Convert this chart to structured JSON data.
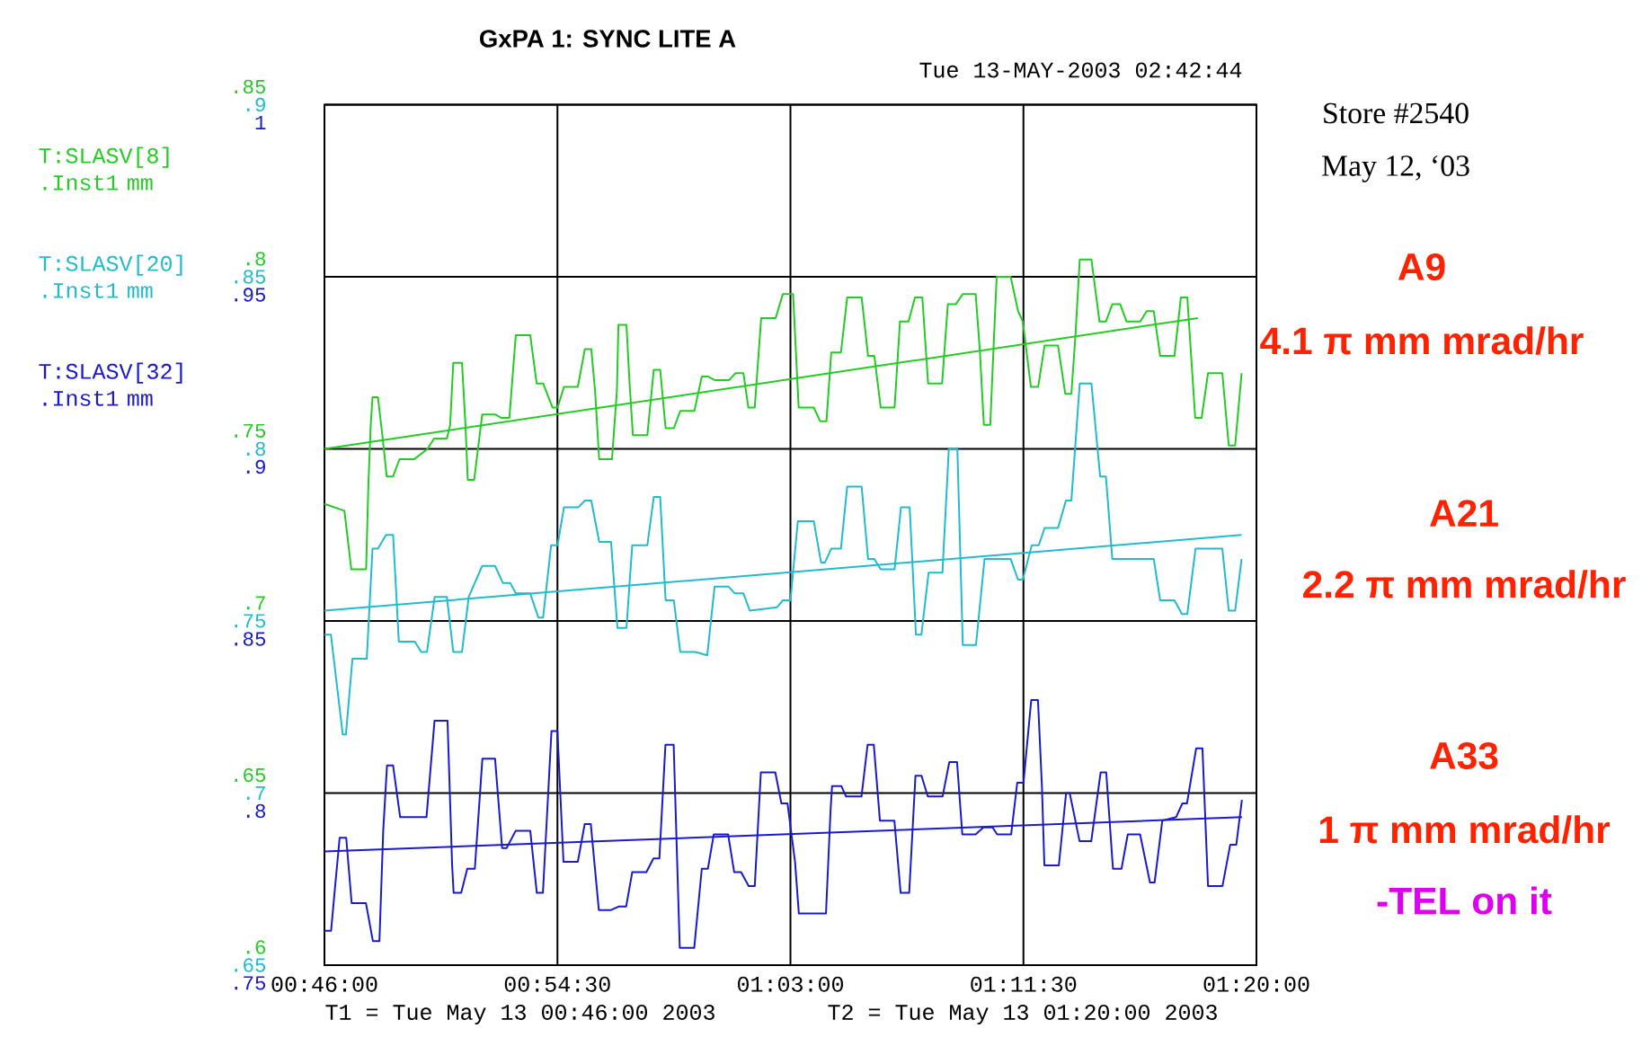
{
  "chart_data": {
    "type": "line",
    "title": "GxPA 1: SYNC LITE A",
    "subtitle": "Tue 13-MAY-2003 02:42:44",
    "xlim": [
      0.766667,
      1.333333
    ],
    "xticks": [
      {
        "value": 0.766667,
        "label": "00:46:00"
      },
      {
        "value": 0.908333,
        "label": "00:54:30"
      },
      {
        "value": 1.05,
        "label": "01:03:00"
      },
      {
        "value": 1.191667,
        "label": "01:11:30"
      },
      {
        "value": 1.333333,
        "label": "01:20:00"
      }
    ],
    "ylim": [
      0.6,
      0.85
    ],
    "yticks": [
      {
        "value": 0.6,
        "label": ".6"
      },
      {
        "value": 0.65,
        "label": ".65"
      },
      {
        "value": 0.7,
        "label": ".7"
      },
      {
        "value": 0.75,
        "label": ".75"
      },
      {
        "value": 0.8,
        "label": ".8"
      },
      {
        "value": 0.85,
        "label": ".85"
      }
    ],
    "y2lim": [
      0.65,
      0.9
    ],
    "y2ticks": [
      {
        "value": 0.65,
        "label": ".65"
      },
      {
        "value": 0.7,
        "label": ".7"
      },
      {
        "value": 0.75,
        "label": ".75"
      },
      {
        "value": 0.8,
        "label": ".8"
      },
      {
        "value": 0.85,
        "label": ".85"
      },
      {
        "value": 0.9,
        "label": ".9"
      }
    ],
    "y3lim": [
      0.75,
      1
    ],
    "y3ticks": [
      {
        "value": 0.75,
        "label": ".75"
      },
      {
        "value": 0.8,
        "label": ".8"
      },
      {
        "value": 0.85,
        "label": ".85"
      },
      {
        "value": 0.9,
        "label": ".9"
      },
      {
        "value": 0.95,
        "label": ".95"
      },
      1
    ],
    "grid": true,
    "series": [
      {
        "name": "T:SLASV[8] .Inst1 mm",
        "color": "#22cc22",
        "x": [
          0.7667,
          0.7788,
          0.783,
          0.792,
          0.7934,
          0.7948,
          0.7959,
          0.7992,
          0.8021,
          0.8045,
          0.8084,
          0.8123,
          0.8212,
          0.8294,
          0.8333,
          0.8411,
          0.8431,
          0.845,
          0.8503,
          0.8524,
          0.8538,
          0.8577,
          0.8626,
          0.8704,
          0.8743,
          0.8791,
          0.883,
          0.8918,
          0.8957,
          0.8996,
          0.9054,
          0.9084,
          0.9123,
          0.9207,
          0.925,
          0.9289,
          0.9312,
          0.9337,
          0.9415,
          0.9445,
          0.9454,
          0.9503,
          0.9522,
          0.9542,
          0.963,
          0.9669,
          0.9708,
          0.9741,
          0.9791,
          0.983,
          0.9916,
          0.9961,
          1.0,
          1.0039,
          1.0127,
          1.0166,
          1.0214,
          1.0244,
          1.0283,
          1.0322,
          1.041,
          1.0454,
          1.0491,
          1.0516,
          1.055,
          1.0642,
          1.0681,
          1.0719,
          1.0748,
          1.0807,
          1.0845,
          1.0933,
          1.0972,
          1.101,
          1.1049,
          1.1133,
          1.1166,
          1.1218,
          1.1257,
          1.1302,
          1.1337,
          1.1422,
          1.1457,
          1.1505,
          1.1548,
          1.1626,
          1.1651,
          1.1676,
          1.1715,
          1.1738,
          1.1754,
          1.1839,
          1.1884,
          1.1913,
          1.1962,
          1.2006,
          1.2045,
          1.2127,
          1.2171,
          1.2208,
          1.2233,
          1.2259,
          1.233,
          1.2379,
          1.2418,
          1.2457,
          1.2505,
          1.2544,
          1.2627,
          1.2666,
          1.2709,
          1.2748,
          1.2835,
          1.2874,
          1.2913,
          1.2961,
          1.3,
          1.3039,
          1.3126,
          1.3165,
          1.3204,
          1.3243
        ],
        "values": [
          0.734,
          0.732,
          0.715,
          0.715,
          0.74,
          0.757,
          0.765,
          0.765,
          0.753,
          0.742,
          0.742,
          0.747,
          0.747,
          0.75,
          0.753,
          0.753,
          0.757,
          0.775,
          0.775,
          0.757,
          0.741,
          0.741,
          0.76,
          0.76,
          0.759,
          0.759,
          0.783,
          0.783,
          0.769,
          0.769,
          0.762,
          0.762,
          0.768,
          0.768,
          0.779,
          0.779,
          0.767,
          0.747,
          0.747,
          0.767,
          0.786,
          0.786,
          0.769,
          0.754,
          0.754,
          0.773,
          0.773,
          0.756,
          0.756,
          0.761,
          0.761,
          0.771,
          0.771,
          0.77,
          0.77,
          0.772,
          0.772,
          0.762,
          0.762,
          0.788,
          0.788,
          0.795,
          0.795,
          0.795,
          0.762,
          0.762,
          0.758,
          0.758,
          0.778,
          0.778,
          0.794,
          0.794,
          0.777,
          0.777,
          0.762,
          0.762,
          0.787,
          0.787,
          0.794,
          0.794,
          0.769,
          0.769,
          0.792,
          0.792,
          0.795,
          0.795,
          0.779,
          0.757,
          0.757,
          0.783,
          0.8,
          0.8,
          0.79,
          0.787,
          0.768,
          0.768,
          0.78,
          0.78,
          0.766,
          0.766,
          0.783,
          0.805,
          0.805,
          0.787,
          0.787,
          0.792,
          0.792,
          0.787,
          0.787,
          0.79,
          0.79,
          0.777,
          0.777,
          0.794,
          0.794,
          0.759,
          0.759,
          0.772,
          0.772,
          0.751,
          0.751,
          0.772
        ]
      },
      {
        "name": "T:SLASV[20] .Inst1 mm",
        "color": "#22bbcc",
        "axis": "y2",
        "x": [
          0.7667,
          0.7706,
          0.7778,
          0.7797,
          0.7837,
          0.7924,
          0.7959,
          0.7992,
          0.8041,
          0.8084,
          0.8119,
          0.8216,
          0.8255,
          0.829,
          0.8337,
          0.8411,
          0.845,
          0.8503,
          0.8544,
          0.8626,
          0.8704,
          0.8752,
          0.8797,
          0.883,
          0.8918,
          0.8967,
          0.8996,
          0.9045,
          0.9084,
          0.9123,
          0.921,
          0.925,
          0.9289,
          0.9337,
          0.9409,
          0.9448,
          0.9503,
          0.9538,
          0.963,
          0.9669,
          0.9708,
          0.9741,
          0.9791,
          0.983,
          0.9922,
          0.9994,
          1.0039,
          1.0123,
          1.0162,
          1.0214,
          1.0253,
          1.0419,
          1.0454,
          1.05,
          1.0545,
          1.0642,
          1.0686,
          1.071,
          1.0748,
          1.0807,
          1.0845,
          1.0933,
          1.0972,
          1.101,
          1.1049,
          1.1133,
          1.1172,
          1.1225,
          1.1263,
          1.1296,
          1.134,
          1.1424,
          1.1463,
          1.1515,
          1.1548,
          1.1628,
          1.168,
          1.1839,
          1.1884,
          1.1913,
          1.1967,
          1.201,
          1.2045,
          1.2127,
          1.2175,
          1.2208,
          1.2259,
          1.233,
          1.2383,
          1.2418,
          1.2457,
          1.2709,
          1.2748,
          1.2835,
          1.288,
          1.2913,
          1.2963,
          1.3126,
          1.3165,
          1.3204,
          1.3243
        ],
        "values": [
          0.746,
          0.746,
          0.717,
          0.717,
          0.739,
          0.739,
          0.771,
          0.771,
          0.775,
          0.775,
          0.744,
          0.744,
          0.741,
          0.741,
          0.757,
          0.757,
          0.741,
          0.741,
          0.757,
          0.766,
          0.766,
          0.761,
          0.761,
          0.758,
          0.758,
          0.751,
          0.751,
          0.772,
          0.772,
          0.783,
          0.783,
          0.785,
          0.785,
          0.773,
          0.773,
          0.748,
          0.748,
          0.772,
          0.772,
          0.786,
          0.786,
          0.756,
          0.756,
          0.741,
          0.741,
          0.74,
          0.76,
          0.76,
          0.758,
          0.758,
          0.753,
          0.754,
          0.756,
          0.756,
          0.779,
          0.779,
          0.767,
          0.767,
          0.771,
          0.771,
          0.789,
          0.789,
          0.768,
          0.768,
          0.765,
          0.765,
          0.783,
          0.783,
          0.746,
          0.746,
          0.764,
          0.764,
          0.8,
          0.8,
          0.743,
          0.743,
          0.768,
          0.768,
          0.762,
          0.762,
          0.772,
          0.772,
          0.777,
          0.777,
          0.785,
          0.785,
          0.819,
          0.819,
          0.792,
          0.792,
          0.768,
          0.768,
          0.756,
          0.756,
          0.752,
          0.752,
          0.771,
          0.771,
          0.753,
          0.753,
          0.768
        ]
      },
      {
        "name": "T:SLASV[32] .Inst1 mm",
        "color": "#1a1acc",
        "axis": "y3",
        "x": [
          0.7667,
          0.7707,
          0.7726,
          0.7759,
          0.7799,
          0.7832,
          0.7919,
          0.7961,
          0.8001,
          0.8024,
          0.8047,
          0.8084,
          0.8127,
          0.8287,
          0.8336,
          0.8415,
          0.8443,
          0.8452,
          0.8498,
          0.8535,
          0.8581,
          0.8627,
          0.8704,
          0.8747,
          0.8774,
          0.8829,
          0.8918,
          0.8958,
          0.8995,
          0.9047,
          0.9083,
          0.912,
          0.9207,
          0.9249,
          0.9286,
          0.9335,
          0.9409,
          0.9455,
          0.9501,
          0.9538,
          0.9624,
          0.9667,
          0.9703,
          0.974,
          0.979,
          0.9827,
          0.9915,
          0.9961,
          0.9998,
          1.0034,
          1.0121,
          1.0158,
          1.02,
          1.0246,
          1.0283,
          1.032,
          1.0408,
          1.0445,
          1.0482,
          1.0528,
          1.0551,
          1.0716,
          1.0744,
          1.0753,
          1.081,
          1.0838,
          1.0932,
          1.0969,
          1.1007,
          1.1044,
          1.1132,
          1.117,
          1.1222,
          1.126,
          1.1297,
          1.1335,
          1.1425,
          1.1466,
          1.1513,
          1.1545,
          1.1626,
          1.1673,
          1.1729,
          1.1757,
          1.1842,
          1.1879,
          1.1917,
          1.1964,
          1.2005,
          1.2029,
          1.2044,
          1.2132,
          1.2176,
          1.2198,
          1.2258,
          1.2329,
          1.2386,
          1.242,
          1.2461,
          1.2513,
          1.2551,
          1.2626,
          1.2686,
          1.2714,
          1.2761,
          1.2845,
          1.2883,
          1.2911,
          1.2967,
          1.3005,
          1.3039,
          1.3127,
          1.3174,
          1.3211,
          1.3245
        ],
        "values": [
          0.76,
          0.76,
          0.77,
          0.787,
          0.787,
          0.768,
          0.768,
          0.757,
          0.757,
          0.789,
          0.808,
          0.808,
          0.793,
          0.793,
          0.821,
          0.821,
          0.779,
          0.771,
          0.771,
          0.778,
          0.778,
          0.81,
          0.81,
          0.784,
          0.784,
          0.789,
          0.789,
          0.771,
          0.771,
          0.818,
          0.818,
          0.78,
          0.78,
          0.791,
          0.791,
          0.766,
          0.766,
          0.767,
          0.767,
          0.777,
          0.777,
          0.781,
          0.781,
          0.814,
          0.814,
          0.755,
          0.755,
          0.778,
          0.778,
          0.788,
          0.788,
          0.777,
          0.777,
          0.773,
          0.773,
          0.806,
          0.806,
          0.797,
          0.797,
          0.78,
          0.765,
          0.765,
          0.795,
          0.802,
          0.802,
          0.799,
          0.799,
          0.814,
          0.814,
          0.792,
          0.792,
          0.771,
          0.771,
          0.805,
          0.805,
          0.799,
          0.799,
          0.809,
          0.809,
          0.788,
          0.788,
          0.79,
          0.79,
          0.788,
          0.788,
          0.803,
          0.803,
          0.827,
          0.827,
          0.802,
          0.779,
          0.779,
          0.8,
          0.8,
          0.786,
          0.786,
          0.806,
          0.806,
          0.778,
          0.778,
          0.788,
          0.788,
          0.774,
          0.774,
          0.792,
          0.793,
          0.797,
          0.797,
          0.813,
          0.813,
          0.773,
          0.773,
          0.785,
          0.785,
          0.798
        ]
      },
      {
        "type": "line",
        "color": "#22cc22",
        "x": [
          0.7667,
          1.2977
        ],
        "values": [
          0.75,
          0.788
        ]
      },
      {
        "type": "line",
        "color": "#22bbcc",
        "axis": "y2",
        "x": [
          0.7667,
          1.3243
        ],
        "values": [
          0.753,
          0.775
        ]
      },
      {
        "type": "line",
        "color": "#1a1acc",
        "axis": "y3",
        "x": [
          0.7667,
          1.3245
        ],
        "values": [
          0.783,
          0.793
        ]
      }
    ],
    "annotations": [
      "Store #2540",
      "May 12, ‘03",
      "A9",
      "4.1 π mm mrad/hr",
      "A21",
      "2.2 π mm mrad/hr",
      "A33",
      "1 π mm mrad/hr",
      "-TEL on it",
      "T1 = Tue May 13 00:46:00 2003",
      "T2 = Tue May 13 01:20:00 2003"
    ]
  }
}
